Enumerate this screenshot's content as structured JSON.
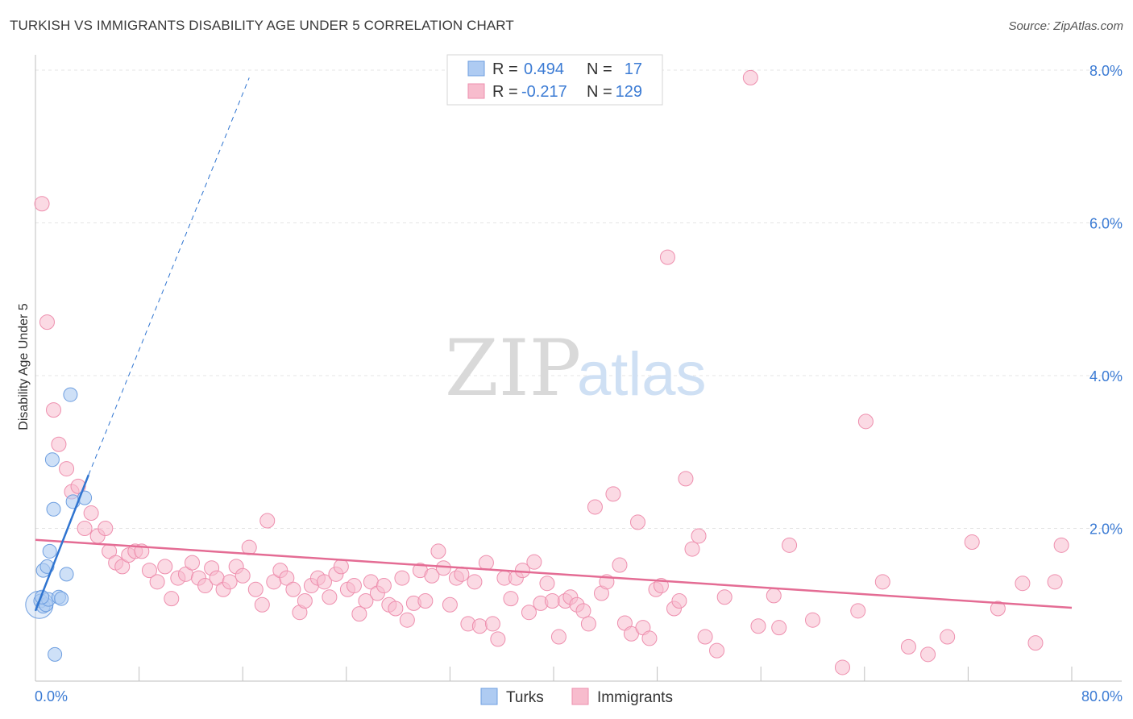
{
  "header": {
    "title": "TURKISH VS IMMIGRANTS DISABILITY AGE UNDER 5 CORRELATION CHART",
    "source": "Source: ZipAtlas.com"
  },
  "watermark": {
    "zip": "ZIP",
    "atlas": "atlas"
  },
  "colors": {
    "turks_fill": "#aecbf2",
    "turks_stroke": "#6f9fe0",
    "turks_line": "#2f74d0",
    "imm_fill": "#f7bccd",
    "imm_stroke": "#ee8fae",
    "imm_line": "#e46c94",
    "grid": "#e4e4e4",
    "axis_text": "#3b7bd4"
  },
  "legend": {
    "rows": [
      {
        "r_label": "R =",
        "r_value": "0.494",
        "n_label": "N =",
        "n_value": "17"
      },
      {
        "r_label": "R =",
        "r_value": "-0.217",
        "n_label": "N =",
        "n_value": "129"
      }
    ]
  },
  "bottom_legend": {
    "turks": "Turks",
    "immigrants": "Immigrants"
  },
  "chart_data": {
    "type": "scatter",
    "title": "TURKISH VS IMMIGRANTS DISABILITY AGE UNDER 5 CORRELATION CHART",
    "xlabel": "",
    "ylabel": "Disability Age Under 5",
    "xlim": [
      0,
      80
    ],
    "ylim": [
      0,
      8.2
    ],
    "x_tick_labels": [
      "0.0%",
      "80.0%"
    ],
    "y_ticks": [
      2,
      4,
      6,
      8
    ],
    "y_tick_labels": [
      "2.0%",
      "4.0%",
      "6.0%",
      "8.0%"
    ],
    "grid": true,
    "series": [
      {
        "name": "Turks",
        "r": 0.494,
        "n": 17,
        "trend": {
          "x0": 0.0,
          "y0": 0.92,
          "x1": 4.1,
          "y1": 2.7,
          "dashed_to_x": 16.5,
          "dashed_to_y": 7.9
        },
        "points": [
          [
            0.4,
            1.05
          ],
          [
            0.6,
            0.98
          ],
          [
            0.8,
            1.0
          ],
          [
            1.0,
            1.07
          ],
          [
            0.5,
            1.1
          ],
          [
            1.8,
            1.1
          ],
          [
            2.0,
            1.08
          ],
          [
            0.6,
            1.45
          ],
          [
            0.9,
            1.5
          ],
          [
            1.1,
            1.7
          ],
          [
            2.4,
            1.4
          ],
          [
            1.4,
            2.25
          ],
          [
            1.3,
            2.9
          ],
          [
            2.9,
            2.35
          ],
          [
            3.8,
            2.4
          ],
          [
            2.7,
            3.75
          ],
          [
            1.5,
            0.35
          ]
        ]
      },
      {
        "name": "Immigrants",
        "r": -0.217,
        "n": 129,
        "trend": {
          "x0": 0.0,
          "y0": 1.85,
          "x1": 80.0,
          "y1": 0.96
        },
        "points": [
          [
            0.5,
            6.25
          ],
          [
            0.9,
            4.7
          ],
          [
            1.4,
            3.55
          ],
          [
            1.8,
            3.1
          ],
          [
            2.4,
            2.78
          ],
          [
            2.8,
            2.48
          ],
          [
            3.3,
            2.55
          ],
          [
            3.8,
            2.0
          ],
          [
            4.3,
            2.2
          ],
          [
            4.8,
            1.9
          ],
          [
            5.4,
            2.0
          ],
          [
            5.7,
            1.7
          ],
          [
            6.2,
            1.55
          ],
          [
            6.7,
            1.5
          ],
          [
            7.2,
            1.65
          ],
          [
            7.7,
            1.7
          ],
          [
            8.2,
            1.7
          ],
          [
            8.8,
            1.45
          ],
          [
            9.4,
            1.3
          ],
          [
            10.0,
            1.5
          ],
          [
            10.5,
            1.08
          ],
          [
            11.0,
            1.35
          ],
          [
            11.6,
            1.4
          ],
          [
            12.1,
            1.55
          ],
          [
            12.6,
            1.35
          ],
          [
            13.1,
            1.25
          ],
          [
            13.6,
            1.48
          ],
          [
            14.0,
            1.35
          ],
          [
            14.5,
            1.2
          ],
          [
            15.0,
            1.3
          ],
          [
            15.5,
            1.5
          ],
          [
            16.0,
            1.38
          ],
          [
            16.5,
            1.75
          ],
          [
            17.0,
            1.2
          ],
          [
            17.5,
            1.0
          ],
          [
            17.9,
            2.1
          ],
          [
            18.4,
            1.3
          ],
          [
            18.9,
            1.45
          ],
          [
            19.4,
            1.35
          ],
          [
            19.9,
            1.2
          ],
          [
            20.4,
            0.9
          ],
          [
            20.8,
            1.05
          ],
          [
            21.3,
            1.25
          ],
          [
            21.8,
            1.35
          ],
          [
            22.3,
            1.3
          ],
          [
            22.7,
            1.1
          ],
          [
            23.2,
            1.4
          ],
          [
            23.6,
            1.5
          ],
          [
            24.1,
            1.2
          ],
          [
            24.6,
            1.25
          ],
          [
            25.0,
            0.88
          ],
          [
            25.5,
            1.05
          ],
          [
            25.9,
            1.3
          ],
          [
            26.4,
            1.15
          ],
          [
            26.9,
            1.25
          ],
          [
            27.3,
            1.0
          ],
          [
            27.8,
            0.95
          ],
          [
            28.3,
            1.35
          ],
          [
            28.7,
            0.8
          ],
          [
            29.2,
            1.02
          ],
          [
            29.7,
            1.45
          ],
          [
            30.1,
            1.05
          ],
          [
            30.6,
            1.38
          ],
          [
            31.1,
            1.7
          ],
          [
            31.5,
            1.48
          ],
          [
            32.0,
            1.0
          ],
          [
            32.5,
            1.35
          ],
          [
            32.9,
            1.4
          ],
          [
            33.4,
            0.75
          ],
          [
            33.9,
            1.3
          ],
          [
            34.3,
            0.72
          ],
          [
            34.8,
            1.55
          ],
          [
            35.3,
            0.75
          ],
          [
            35.7,
            0.55
          ],
          [
            36.2,
            1.35
          ],
          [
            36.7,
            1.08
          ],
          [
            37.1,
            1.35
          ],
          [
            37.6,
            1.45
          ],
          [
            38.1,
            0.9
          ],
          [
            38.5,
            1.56
          ],
          [
            39.0,
            1.02
          ],
          [
            39.5,
            1.28
          ],
          [
            39.9,
            1.05
          ],
          [
            40.4,
            0.58
          ],
          [
            40.9,
            1.05
          ],
          [
            41.3,
            1.1
          ],
          [
            41.8,
            1.0
          ],
          [
            42.3,
            0.92
          ],
          [
            42.7,
            0.75
          ],
          [
            43.2,
            2.28
          ],
          [
            43.7,
            1.15
          ],
          [
            44.1,
            1.3
          ],
          [
            44.6,
            2.45
          ],
          [
            45.1,
            1.52
          ],
          [
            45.5,
            0.76
          ],
          [
            46.0,
            0.62
          ],
          [
            46.5,
            2.08
          ],
          [
            46.9,
            0.7
          ],
          [
            47.4,
            0.56
          ],
          [
            47.9,
            1.2
          ],
          [
            48.3,
            1.25
          ],
          [
            48.8,
            5.55
          ],
          [
            49.3,
            0.95
          ],
          [
            49.7,
            1.05
          ],
          [
            50.2,
            2.65
          ],
          [
            50.7,
            1.73
          ],
          [
            51.2,
            1.9
          ],
          [
            51.7,
            0.58
          ],
          [
            52.6,
            0.4
          ],
          [
            53.2,
            1.1
          ],
          [
            55.2,
            7.9
          ],
          [
            55.8,
            0.72
          ],
          [
            57.0,
            1.12
          ],
          [
            57.4,
            0.7
          ],
          [
            58.2,
            1.78
          ],
          [
            60.0,
            0.8
          ],
          [
            62.3,
            0.18
          ],
          [
            63.5,
            0.92
          ],
          [
            64.1,
            3.4
          ],
          [
            65.4,
            1.3
          ],
          [
            67.4,
            0.45
          ],
          [
            68.9,
            0.35
          ],
          [
            70.4,
            0.58
          ],
          [
            72.3,
            1.82
          ],
          [
            74.3,
            0.95
          ],
          [
            76.2,
            1.28
          ],
          [
            77.2,
            0.5
          ],
          [
            78.7,
            1.3
          ],
          [
            79.2,
            1.78
          ]
        ]
      }
    ]
  }
}
